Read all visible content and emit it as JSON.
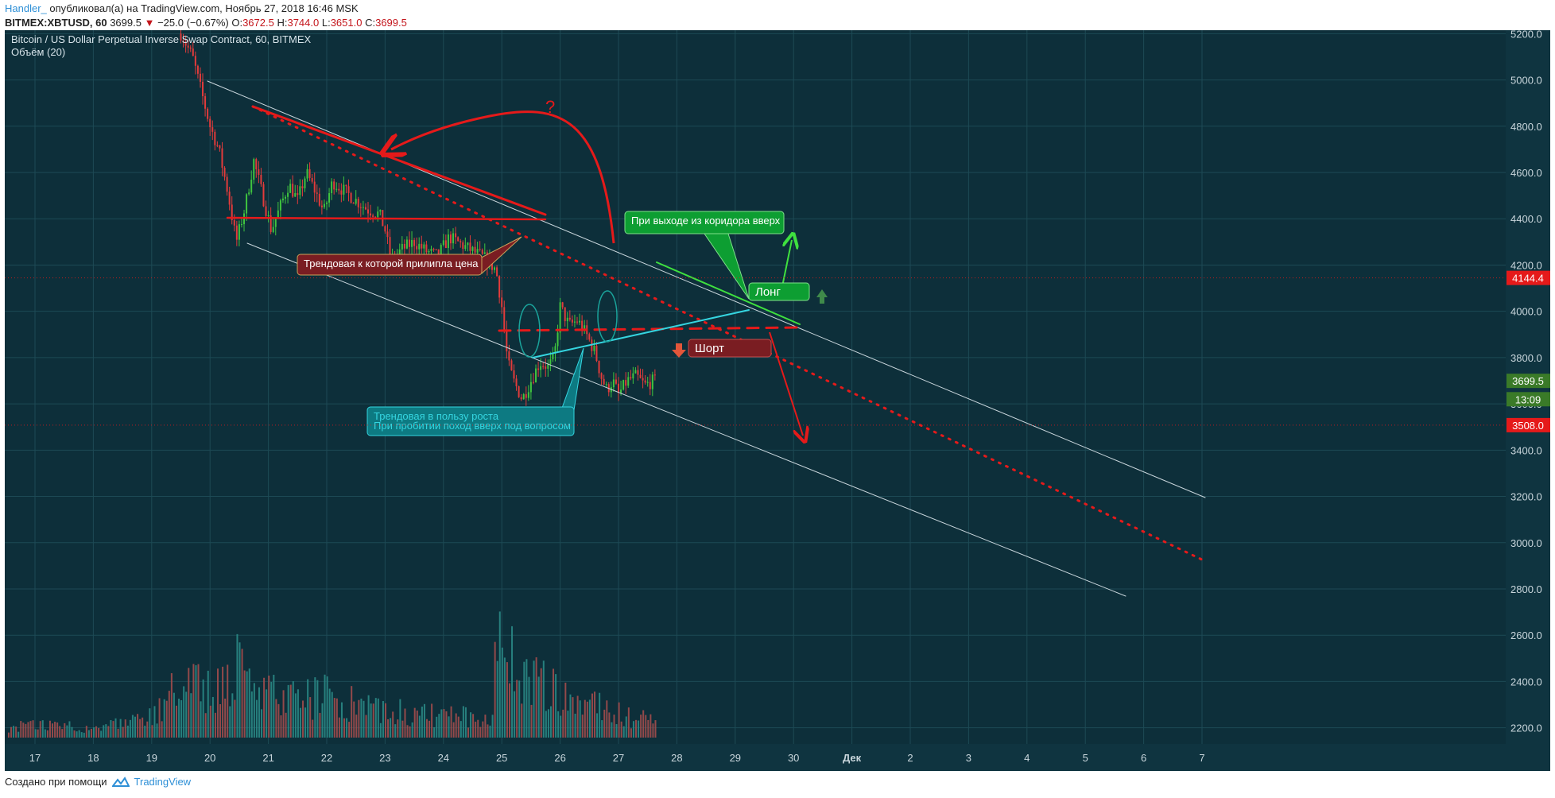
{
  "header": {
    "author": "Handler_",
    "published": "опубликовал(а) на TradingView.com, Ноябрь 27, 2018 16:46 MSK",
    "symbol": "BITMEX:XBTUSD, 60",
    "price": "3699.5",
    "change": "−25.0 (−0.67%)",
    "o_label": "O:",
    "o_val": "3672.5",
    "h_label": "H:",
    "h_val": "3744.0",
    "l_label": "L:",
    "l_val": "3651.0",
    "c_label": "C:",
    "c_val": "3699.5"
  },
  "pane": {
    "title": "Bitcoin / US Dollar Perpetual Inverse Swap Contract, 60, BITMEX",
    "volume_label": "Объём (20)"
  },
  "footer": {
    "created_with": "Создано при помощи",
    "brand": "TradingView"
  },
  "colors": {
    "background": "#0d2f3a",
    "grid": "#1d4a55",
    "up": "#3fc43f",
    "down": "#e23b3b",
    "vol_up": "#2a8a86",
    "vol_down": "#a24d4d",
    "red_annotation": "#e51a1a",
    "green_annotation": "#0d9e32",
    "cyan_annotation": "#35d5e0"
  },
  "chart_data": {
    "type": "candlestick",
    "title": "Bitcoin / US Dollar Perpetual Inverse Swap Contract, 60, BITMEX",
    "x_ticks": [
      "17",
      "18",
      "19",
      "20",
      "21",
      "22",
      "23",
      "24",
      "25",
      "26",
      "27",
      "28",
      "29",
      "30",
      "Дек",
      "2",
      "3",
      "4",
      "5",
      "6",
      "7"
    ],
    "y_ticks": [
      5200,
      5000,
      4800,
      4600,
      4400,
      4200,
      4000,
      3800,
      3600,
      3400,
      3200,
      3000,
      2800,
      2600,
      2400,
      2200
    ],
    "ylim": [
      2130,
      5215
    ],
    "price_labels": [
      {
        "value": 4144.4,
        "text": "4144.4",
        "color": "#e51a1a"
      },
      {
        "value": 3699.5,
        "text": "3699.5",
        "color": "#3a7a28"
      },
      {
        "value": 3620,
        "text": "13:09",
        "color": "#3a7a28"
      },
      {
        "value": 3508.0,
        "text": "3508.0",
        "color": "#e51a1a"
      }
    ],
    "price_path": [
      [
        19.5,
        5200
      ],
      [
        19.7,
        5100
      ],
      [
        19.85,
        4950
      ],
      [
        20.0,
        4800
      ],
      [
        20.15,
        4700
      ],
      [
        20.3,
        4520
      ],
      [
        20.45,
        4300
      ],
      [
        20.6,
        4450
      ],
      [
        20.75,
        4650
      ],
      [
        20.9,
        4500
      ],
      [
        21.05,
        4350
      ],
      [
        21.2,
        4450
      ],
      [
        21.35,
        4550
      ],
      [
        21.5,
        4480
      ],
      [
        21.65,
        4600
      ],
      [
        21.8,
        4520
      ],
      [
        21.95,
        4430
      ],
      [
        22.1,
        4560
      ],
      [
        22.3,
        4520
      ],
      [
        22.5,
        4480
      ],
      [
        22.7,
        4440
      ],
      [
        22.9,
        4420
      ],
      [
        23.0,
        4350
      ],
      [
        23.1,
        4220
      ],
      [
        23.3,
        4270
      ],
      [
        23.5,
        4300
      ],
      [
        23.7,
        4260
      ],
      [
        23.9,
        4240
      ],
      [
        24.1,
        4320
      ],
      [
        24.3,
        4290
      ],
      [
        24.5,
        4260
      ],
      [
        24.7,
        4230
      ],
      [
        24.9,
        4180
      ],
      [
        25.0,
        4020
      ],
      [
        25.1,
        3780
      ],
      [
        25.2,
        3700
      ],
      [
        25.35,
        3620
      ],
      [
        25.5,
        3700
      ],
      [
        25.65,
        3780
      ],
      [
        25.8,
        3760
      ],
      [
        25.9,
        3800
      ],
      [
        26.0,
        4020
      ],
      [
        26.15,
        3940
      ],
      [
        26.3,
        3960
      ],
      [
        26.45,
        3900
      ],
      [
        26.6,
        3820
      ],
      [
        26.7,
        3720
      ],
      [
        26.8,
        3660
      ],
      [
        26.9,
        3700
      ],
      [
        27.0,
        3640
      ],
      [
        27.15,
        3700
      ],
      [
        27.3,
        3720
      ],
      [
        27.45,
        3680
      ],
      [
        27.6,
        3700
      ],
      [
        27.65,
        3699.5
      ]
    ],
    "volume_levels": [
      [
        17.0,
        0.07
      ],
      [
        17.5,
        0.08
      ],
      [
        18.0,
        0.06
      ],
      [
        18.5,
        0.08
      ],
      [
        19.0,
        0.12
      ],
      [
        19.5,
        0.32
      ],
      [
        19.8,
        0.3
      ],
      [
        20.0,
        0.28
      ],
      [
        20.3,
        0.32
      ],
      [
        20.5,
        0.52
      ],
      [
        20.8,
        0.26
      ],
      [
        21.0,
        0.25
      ],
      [
        21.5,
        0.22
      ],
      [
        22.0,
        0.25
      ],
      [
        22.5,
        0.2
      ],
      [
        23.0,
        0.18
      ],
      [
        23.5,
        0.14
      ],
      [
        24.0,
        0.13
      ],
      [
        24.5,
        0.12
      ],
      [
        24.8,
        0.14
      ],
      [
        25.0,
        0.72
      ],
      [
        25.3,
        0.32
      ],
      [
        25.6,
        0.36
      ],
      [
        26.0,
        0.26
      ],
      [
        26.5,
        0.2
      ],
      [
        27.0,
        0.14
      ],
      [
        27.6,
        0.1
      ]
    ],
    "annotations": [
      {
        "text": "?",
        "color": "#e51a1a"
      },
      {
        "text": "При выходе из коридора вверх",
        "color": "#0d9e32"
      },
      {
        "text": "Лонг",
        "color": "#0d9e32"
      },
      {
        "text": "Шорт",
        "color": "#7a1d22"
      },
      {
        "text": "Трендовая к которой прилипла цена",
        "color": "#7a1d22"
      },
      {
        "text": "Трендовая в пользу роста",
        "color": "#35d5e0"
      },
      {
        "text": "При пробитии поход вверх под вопросом",
        "color": "#35d5e0"
      }
    ]
  }
}
